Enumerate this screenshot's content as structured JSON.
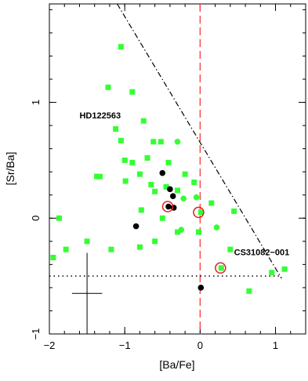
{
  "chart_data": {
    "type": "scatter",
    "title": "",
    "xlabel": "[Ba/Fe]",
    "ylabel": "[Sr/Ba]",
    "xlim": [
      -2,
      1.4
    ],
    "ylim": [
      -1,
      1.85
    ],
    "x_ticks": [
      -2,
      -1,
      0,
      1
    ],
    "x_tick_labels": [
      "−2",
      "−1",
      "0",
      "1"
    ],
    "y_ticks": [
      -1,
      0,
      1
    ],
    "y_tick_labels": [
      "−1",
      "0",
      "1"
    ],
    "grid": false,
    "colors": {
      "green": "#33ff33",
      "black": "#000000",
      "red": "#e02020",
      "reference_line": "#ff4040"
    },
    "series": [
      {
        "marker": "square",
        "color": "#33ff33",
        "points": [
          [
            -1.05,
            1.48
          ],
          [
            -1.22,
            1.13
          ],
          [
            -0.9,
            1.09
          ],
          [
            -1.12,
            0.77
          ],
          [
            -1.05,
            0.67
          ],
          [
            -0.75,
            0.84
          ],
          [
            -0.62,
            0.66
          ],
          [
            -0.52,
            0.66
          ],
          [
            -0.7,
            0.52
          ],
          [
            -0.9,
            0.48
          ],
          [
            -0.42,
            0.48
          ],
          [
            -1.0,
            0.5
          ],
          [
            -1.37,
            0.36
          ],
          [
            -1.33,
            0.36
          ],
          [
            -0.8,
            0.38
          ],
          [
            -0.99,
            0.32
          ],
          [
            -0.65,
            0.29
          ],
          [
            -0.45,
            0.27
          ],
          [
            -0.2,
            0.38
          ],
          [
            -0.08,
            0.31
          ],
          [
            -0.3,
            0.24
          ],
          [
            -0.78,
            0.07
          ],
          [
            -0.5,
            0.0
          ],
          [
            0.01,
            0.05
          ],
          [
            -1.87,
            0.0
          ],
          [
            -1.78,
            -0.27
          ],
          [
            -1.95,
            -0.34
          ],
          [
            -1.5,
            -0.2
          ],
          [
            -1.18,
            -0.27
          ],
          [
            -0.8,
            -0.25
          ],
          [
            -0.6,
            -0.2
          ],
          [
            -0.3,
            -0.12
          ],
          [
            -0.02,
            -0.12
          ],
          [
            0.15,
            0.13
          ],
          [
            0.45,
            0.06
          ],
          [
            0.4,
            -0.27
          ],
          [
            0.28,
            -0.43
          ],
          [
            0.95,
            -0.47
          ],
          [
            1.12,
            -0.44
          ],
          [
            0.65,
            -0.63
          ],
          [
            -0.6,
            0.23
          ]
        ]
      },
      {
        "marker": "circle",
        "color": "#33ff33",
        "points": [
          [
            -0.3,
            0.66
          ],
          [
            -0.05,
            0.18
          ],
          [
            -0.22,
            0.17
          ],
          [
            0.22,
            -0.08
          ],
          [
            -0.25,
            -0.1
          ]
        ]
      },
      {
        "marker": "circle",
        "color": "#000000",
        "points": [
          [
            -0.85,
            -0.07
          ],
          [
            -0.5,
            0.39
          ],
          [
            -0.4,
            0.25
          ],
          [
            -0.36,
            0.19
          ],
          [
            -0.42,
            0.1
          ],
          [
            -0.35,
            0.09
          ],
          [
            0.01,
            -0.6
          ]
        ]
      },
      {
        "marker": "open-circle",
        "color": "#e02020",
        "points": [
          [
            -0.43,
            0.1
          ],
          [
            -0.02,
            0.05
          ],
          [
            0.27,
            -0.43
          ]
        ]
      }
    ],
    "reference_lines": [
      {
        "style": "dashed",
        "color": "#ff4040",
        "orientation": "vertical",
        "x": 0
      },
      {
        "style": "dotted",
        "color": "#000000",
        "orientation": "horizontal",
        "y": -0.5,
        "x_range": [
          -2,
          1.05
        ]
      },
      {
        "style": "dash-dot",
        "color": "#000000",
        "from": [
          -1.1,
          1.85
        ],
        "to": [
          1.08,
          -0.52
        ]
      }
    ],
    "error_bar": {
      "x": -1.5,
      "y": -0.65,
      "x_err": 0.2,
      "y_err": 0.35
    },
    "annotations": [
      {
        "text": "HD122563",
        "x": -1.6,
        "y": 0.86
      },
      {
        "text": "CS31082−001",
        "x": 0.45,
        "y": -0.32
      }
    ]
  }
}
